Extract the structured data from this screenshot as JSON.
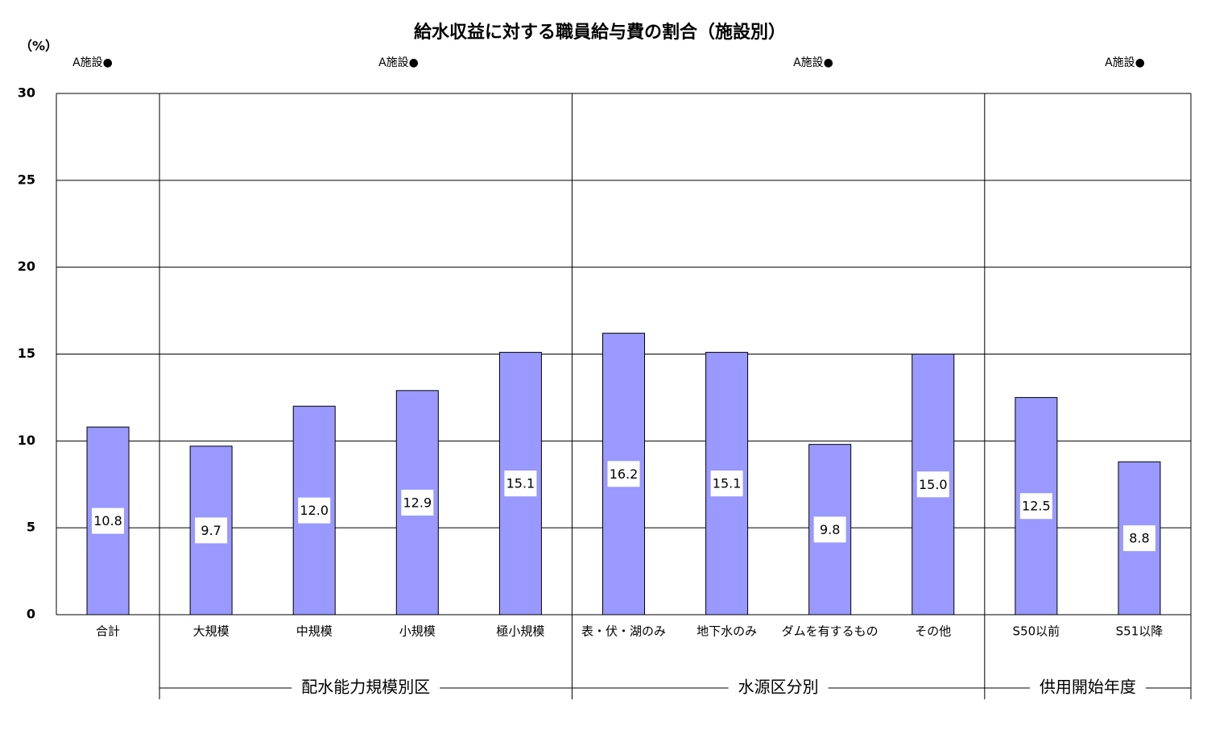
{
  "chart_data": {
    "type": "bar",
    "title": "給水収益に対する職員給与費の割合（施設別）",
    "ylabel": "（%）",
    "annotations": [
      "A施設●",
      "A施設●",
      "A施設●",
      "A施設●"
    ],
    "categories": [
      "合計",
      "大規模",
      "中規模",
      "小規模",
      "極小規模",
      "表・伏・湖のみ",
      "地下水のみ",
      "ダムを有するもの",
      "その他",
      "S50以前",
      "S51以降"
    ],
    "values": [
      10.8,
      9.7,
      12.0,
      12.9,
      15.1,
      16.2,
      15.1,
      9.8,
      15.0,
      12.5,
      8.8
    ],
    "value_labels": [
      "10.8",
      "9.7",
      "12.0",
      "12.9",
      "15.1",
      "16.2",
      "15.1",
      "9.8",
      "15.0",
      "12.5",
      "8.8"
    ],
    "groups": [
      "配水能力規模別区",
      "水源区分別",
      "供用開始年度"
    ],
    "color": "#9999ff",
    "ylim": [
      0,
      30
    ],
    "yticks": [
      0,
      5,
      10,
      15,
      20,
      25,
      30
    ],
    "grid": true
  }
}
